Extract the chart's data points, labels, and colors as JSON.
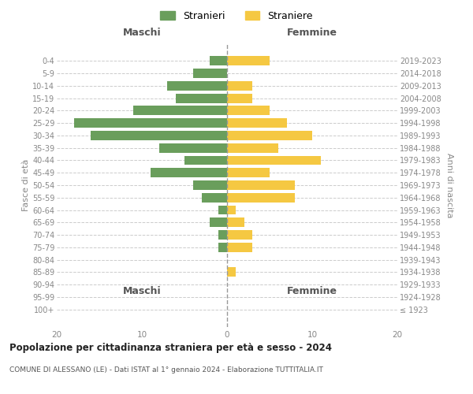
{
  "age_groups": [
    "100+",
    "95-99",
    "90-94",
    "85-89",
    "80-84",
    "75-79",
    "70-74",
    "65-69",
    "60-64",
    "55-59",
    "50-54",
    "45-49",
    "40-44",
    "35-39",
    "30-34",
    "25-29",
    "20-24",
    "15-19",
    "10-14",
    "5-9",
    "0-4"
  ],
  "birth_years": [
    "≤ 1923",
    "1924-1928",
    "1929-1933",
    "1934-1938",
    "1939-1943",
    "1944-1948",
    "1949-1953",
    "1954-1958",
    "1959-1963",
    "1964-1968",
    "1969-1973",
    "1974-1978",
    "1979-1983",
    "1984-1988",
    "1989-1993",
    "1994-1998",
    "1999-2003",
    "2004-2008",
    "2009-2013",
    "2014-2018",
    "2019-2023"
  ],
  "males": [
    0,
    0,
    0,
    0,
    0,
    1,
    1,
    2,
    1,
    3,
    4,
    9,
    5,
    8,
    16,
    18,
    11,
    6,
    7,
    4,
    2
  ],
  "females": [
    0,
    0,
    0,
    1,
    0,
    3,
    3,
    2,
    1,
    8,
    8,
    5,
    11,
    6,
    10,
    7,
    5,
    3,
    3,
    0,
    5
  ],
  "male_color": "#6a9e5c",
  "female_color": "#f5c842",
  "bg_color": "#ffffff",
  "grid_color": "#cccccc",
  "title_main": "Popolazione per cittadinanza straniera per età e sesso - 2024",
  "title_sub": "COMUNE DI ALESSANO (LE) - Dati ISTAT al 1° gennaio 2024 - Elaborazione TUTTITALIA.IT",
  "xlabel_left": "Maschi",
  "xlabel_right": "Femmine",
  "ylabel_left": "Fasce di età",
  "ylabel_right": "Anni di nascita",
  "legend_male": "Stranieri",
  "legend_female": "Straniere",
  "xlim": 20,
  "bar_height": 0.75
}
